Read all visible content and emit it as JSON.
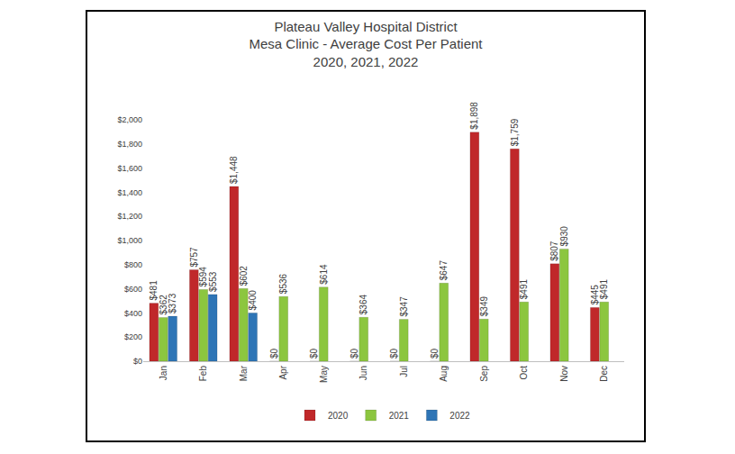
{
  "chart_data": {
    "type": "bar",
    "title": "Plateau Valley Hospital District\nMesa Clinic - Average Cost Per Patient\n2020, 2021, 2022",
    "categories": [
      "Jan",
      "Feb",
      "Mar",
      "Apr",
      "May",
      "Jun",
      "Jul",
      "Aug",
      "Sep",
      "Oct",
      "Nov",
      "Dec"
    ],
    "series": [
      {
        "name": "2020",
        "color": "#c0282a",
        "values": [
          481,
          757,
          1448,
          0,
          0,
          0,
          0,
          0,
          1898,
          1759,
          807,
          445
        ],
        "value_labels": [
          "$481",
          "$757",
          "$1,448",
          "$0",
          "$0",
          "$0",
          "$0",
          "$0",
          "$1,898",
          "$1,759",
          "$807",
          "$445"
        ]
      },
      {
        "name": "2021",
        "color": "#8cc63f",
        "values": [
          362,
          594,
          602,
          536,
          614,
          364,
          347,
          647,
          349,
          491,
          930,
          491
        ],
        "value_labels": [
          "$362",
          "$594",
          "$602",
          "$536",
          "$614",
          "$364",
          "$347",
          "$647",
          "$349",
          "$491",
          "$930",
          "$491"
        ]
      },
      {
        "name": "2022",
        "color": "#2e75b6",
        "values": [
          373,
          553,
          400,
          null,
          null,
          null,
          null,
          null,
          null,
          null,
          null,
          null
        ],
        "value_labels": [
          "$373",
          "$553",
          "$400",
          null,
          null,
          null,
          null,
          null,
          null,
          null,
          null,
          null
        ]
      }
    ],
    "ylim": [
      0,
      2000
    ],
    "yticks": [
      {
        "value": 0,
        "label": "$0"
      },
      {
        "value": 200,
        "label": "$200"
      },
      {
        "value": 400,
        "label": "$400"
      },
      {
        "value": 600,
        "label": "$600"
      },
      {
        "value": 800,
        "label": "$800"
      },
      {
        "value": 1000,
        "label": "$1,000"
      },
      {
        "value": 1200,
        "label": "$1,200"
      },
      {
        "value": 1400,
        "label": "$1,400"
      },
      {
        "value": 1600,
        "label": "$1,600"
      },
      {
        "value": 1800,
        "label": "$1,800"
      },
      {
        "value": 2000,
        "label": "$2,000"
      }
    ],
    "grid": false,
    "legend": "bottom",
    "data_labels": true
  }
}
